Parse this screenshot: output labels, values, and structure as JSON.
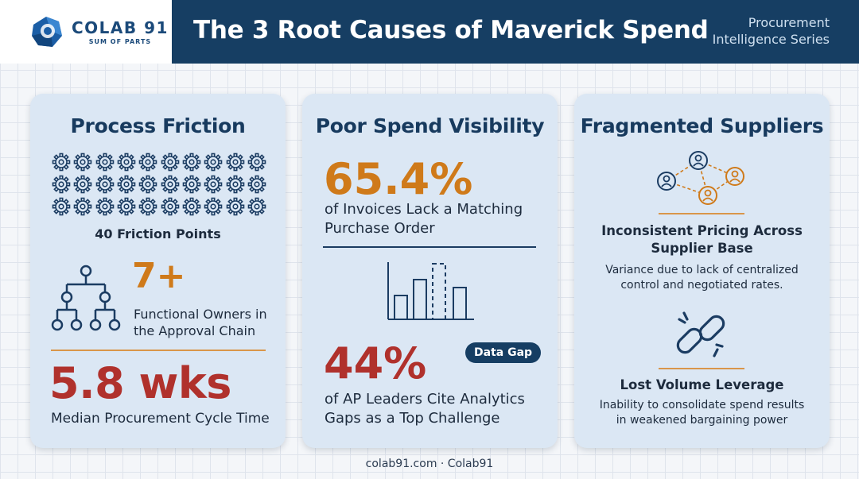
{
  "brand": {
    "name": "COLAB 91",
    "tagline": "SUM OF PARTS",
    "primary_color": "#163e63",
    "logo_color": "#1b4a7a"
  },
  "header": {
    "title": "The 3 Root Causes of Maverick Spend",
    "series_line1": "Procurement",
    "series_line2": "Intelligence Series"
  },
  "cards": [
    {
      "title": "Process Friction",
      "icon": "gear-icon",
      "friction_points": "40 Friction Points",
      "owners_value": "7+",
      "owners_line1": "Functional Owners in",
      "owners_line2": "the Approval Chain",
      "org_icon": "org-chart-icon",
      "cycle_value": "5.8 wks",
      "cycle_label": "Median Procurement Cycle Time"
    },
    {
      "title": "Poor Spend Visibility",
      "stat1_value": "65.4%",
      "stat1_line1": "of Invoices Lack a Matching",
      "stat1_line2": "Purchase Order",
      "chart_icon": "bar-chart-icon",
      "stat2_value": "44%",
      "badge": "Data Gap",
      "stat2_line1": "of AP Leaders Cite Analytics",
      "stat2_line2": "Gaps as a Top Challenge"
    },
    {
      "title": "Fragmented Suppliers",
      "network_icon": "supplier-network-icon",
      "head1_line1": "Inconsistent Pricing Across",
      "head1_line2": "Supplier Base",
      "body1_line1": "Variance due to lack of centralized",
      "body1_line2": "control and negotiated rates.",
      "link_icon": "broken-link-icon",
      "head2": "Lost Volume Leverage",
      "body2_line1": "Inability to consolidate spend results",
      "body2_line2": "in weakened bargaining power"
    }
  ],
  "colors": {
    "orange": "#cf7a1a",
    "red": "#b0312c",
    "card_bg": "#dbe7f4"
  },
  "footer": "colab91.com · Colab91"
}
